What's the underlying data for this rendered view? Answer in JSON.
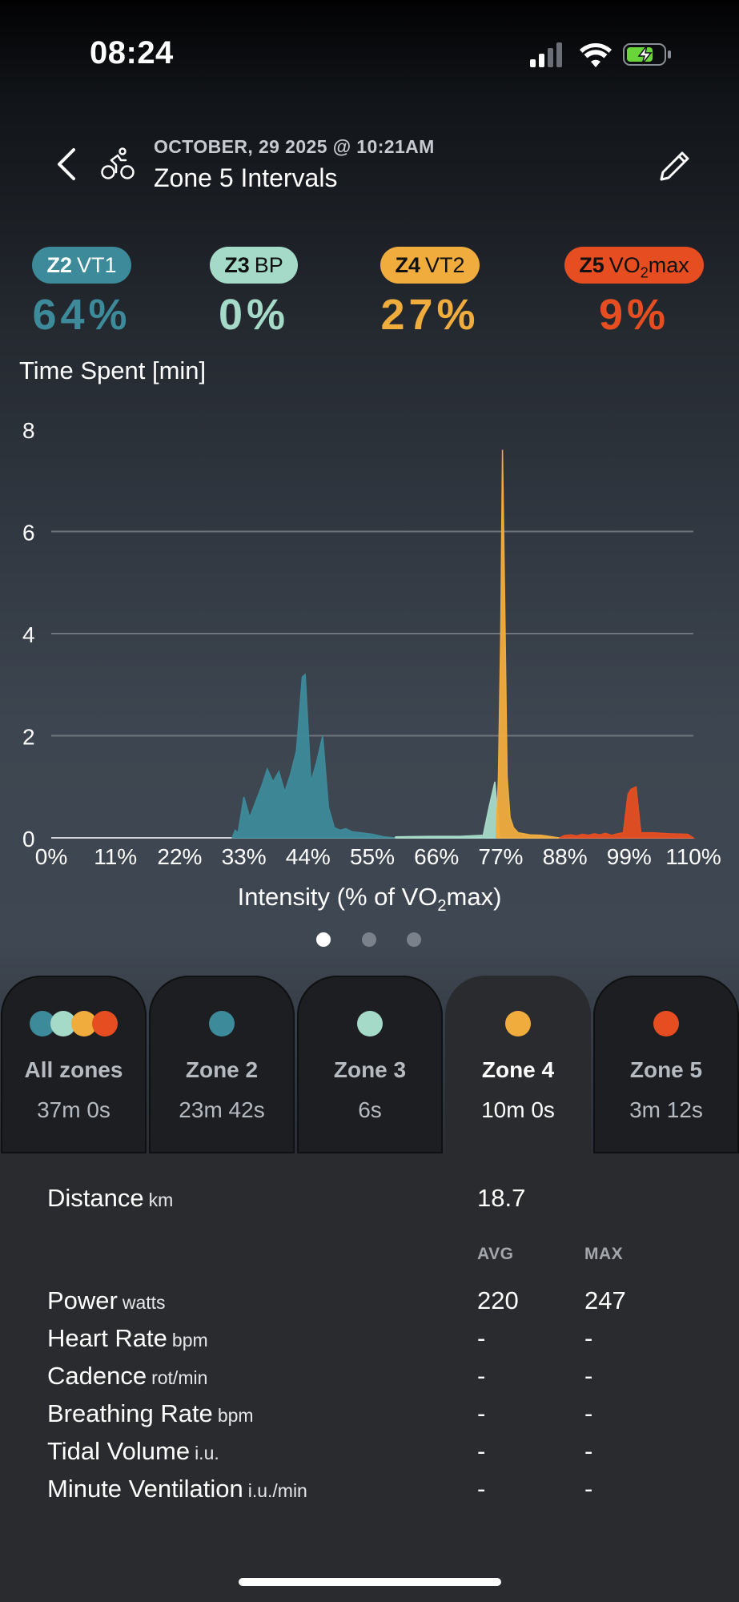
{
  "status_bar": {
    "time": "08:24"
  },
  "header": {
    "date": "OCTOBER, 29 2025 @ 10:21AM",
    "title": "Zone 5 Intervals"
  },
  "zones": [
    {
      "code": "Z2",
      "name": "VT1",
      "percent": "64%",
      "color": "#3d8a9a",
      "badge_text_color": "#ffffff"
    },
    {
      "code": "Z3",
      "name": "BP",
      "percent": "0%",
      "color": "#a6dac8",
      "badge_text_color": "#111111"
    },
    {
      "code": "Z4",
      "name": "VT2",
      "percent": "27%",
      "color": "#f0ad3d",
      "badge_text_color": "#111111"
    },
    {
      "code": "Z5",
      "name": "VO",
      "name_sub": "2",
      "name_suffix": "max",
      "percent": "9%",
      "color": "#e64e22",
      "badge_text_color": "#111111"
    }
  ],
  "chart_data": {
    "type": "area",
    "title": "Time Spent [min]",
    "xlabel": "Intensity (% of VO",
    "xlabel_sub": "2",
    "xlabel_suffix": "max)",
    "xlim": [
      0,
      110
    ],
    "ylim": [
      0,
      8
    ],
    "yticks": [
      "0",
      "2",
      "4",
      "6",
      "8"
    ],
    "xticks": [
      "0%",
      "11%",
      "22%",
      "33%",
      "44%",
      "55%",
      "66%",
      "77%",
      "88%",
      "99%",
      "110%"
    ],
    "grid": true,
    "series": [
      {
        "zone": "Z2",
        "color": "#3d8a9a",
        "x": [
          31,
          31.5,
          32,
          33,
          34,
          35,
          36,
          37,
          38,
          39,
          40,
          41,
          42,
          43,
          43.5,
          44.5,
          45.5,
          46.5,
          47.5,
          48.5,
          49.5,
          50.5,
          51.5,
          53,
          55,
          57,
          59
        ],
        "y": [
          0,
          0.15,
          0.1,
          0.8,
          0.4,
          0.7,
          1.0,
          1.35,
          1.1,
          1.3,
          0.9,
          1.25,
          1.7,
          3.15,
          3.2,
          1.1,
          1.5,
          2.0,
          0.6,
          0.2,
          0.15,
          0.18,
          0.12,
          0.1,
          0.07,
          0.02,
          0
        ]
      },
      {
        "zone": "Z3",
        "color": "#a6dac8",
        "x": [
          59,
          65,
          70,
          74,
          75,
          76,
          76.8
        ],
        "y": [
          0.02,
          0.03,
          0.03,
          0.05,
          0.6,
          1.1,
          0
        ]
      },
      {
        "zone": "Z4",
        "color": "#f0ad3d",
        "x": [
          76.2,
          76.6,
          77,
          77.3,
          77.7,
          78.1,
          78.6,
          79.2,
          80,
          82,
          84,
          87
        ],
        "y": [
          0,
          1.2,
          4.0,
          7.6,
          4.5,
          1.2,
          0.4,
          0.2,
          0.1,
          0.06,
          0.05,
          0
        ]
      },
      {
        "zone": "Z5",
        "color": "#e64e22",
        "x": [
          87,
          88,
          89,
          90,
          91,
          92,
          93,
          94,
          95,
          96,
          97,
          98,
          98.8,
          99.3,
          100.2,
          101,
          103,
          106,
          109,
          110
        ],
        "y": [
          0,
          0.05,
          0.06,
          0.04,
          0.07,
          0.05,
          0.08,
          0.06,
          0.09,
          0.05,
          0.08,
          0.1,
          0.85,
          0.95,
          1.0,
          0.1,
          0.1,
          0.08,
          0.07,
          0
        ]
      }
    ]
  },
  "pager": {
    "count": 3,
    "active": 0
  },
  "tabs": [
    {
      "label": "All zones",
      "time": "37m 0s",
      "colors": [
        "#3d8a9a",
        "#a6dac8",
        "#f0ad3d",
        "#e64e22"
      ],
      "active": false
    },
    {
      "label": "Zone 2",
      "time": "23m 42s",
      "colors": [
        "#3d8a9a"
      ],
      "active": false
    },
    {
      "label": "Zone 3",
      "time": "6s",
      "colors": [
        "#a6dac8"
      ],
      "active": false
    },
    {
      "label": "Zone 4",
      "time": "10m 0s",
      "colors": [
        "#f0ad3d"
      ],
      "active": true
    },
    {
      "label": "Zone 5",
      "time": "3m 12s",
      "colors": [
        "#e64e22"
      ],
      "active": false
    }
  ],
  "stats": {
    "distance": {
      "label": "Distance",
      "unit": "km",
      "value": "18.7"
    },
    "headers": {
      "avg": "AVG",
      "max": "MAX"
    },
    "rows": [
      {
        "label": "Power",
        "unit": "watts",
        "avg": "220",
        "max": "247"
      },
      {
        "label": "Heart Rate",
        "unit": "bpm",
        "avg": "-",
        "max": "-"
      },
      {
        "label": "Cadence",
        "unit": "rot/min",
        "avg": "-",
        "max": "-"
      },
      {
        "label": "Breathing Rate",
        "unit": "bpm",
        "avg": "-",
        "max": "-"
      },
      {
        "label": "Tidal Volume",
        "unit": "i.u.",
        "avg": "-",
        "max": "-"
      },
      {
        "label": "Minute Ventilation",
        "unit": "i.u./min",
        "avg": "-",
        "max": "-"
      }
    ]
  }
}
